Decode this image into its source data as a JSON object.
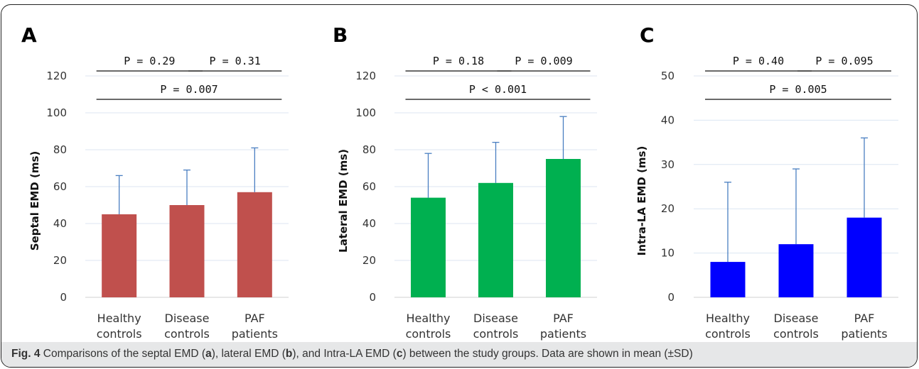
{
  "chart_data": [
    {
      "type": "bar",
      "panel_label": "A",
      "categories": [
        [
          "Healthy",
          "controls"
        ],
        [
          "Disease",
          "controls"
        ],
        [
          "PAF",
          "patients"
        ]
      ],
      "values": [
        45,
        50,
        57
      ],
      "errors": [
        21,
        19,
        24
      ],
      "ylabel": "Septal EMD (ms)",
      "ylim": [
        0,
        120
      ],
      "yticks": [
        0,
        20,
        40,
        60,
        80,
        100,
        120
      ],
      "color": "#c0504d",
      "error_color": "#4a7fc1",
      "grid": true,
      "comparisons": [
        {
          "from": 0,
          "to": 1,
          "label": "P = 0.29"
        },
        {
          "from": 1,
          "to": 2,
          "label": "P = 0.31"
        },
        {
          "from": 0,
          "to": 2,
          "label": "P = 0.007"
        }
      ]
    },
    {
      "type": "bar",
      "panel_label": "B",
      "categories": [
        [
          "Healthy",
          "controls"
        ],
        [
          "Disease",
          "controls"
        ],
        [
          "PAF",
          "patients"
        ]
      ],
      "values": [
        54,
        62,
        75
      ],
      "errors": [
        24,
        22,
        23
      ],
      "ylabel": "Lateral EMD (ms)",
      "ylim": [
        0,
        120
      ],
      "yticks": [
        0,
        20,
        40,
        60,
        80,
        100,
        120
      ],
      "color": "#00b050",
      "error_color": "#4a7fc1",
      "grid": true,
      "comparisons": [
        {
          "from": 0,
          "to": 1,
          "label": "P = 0.18"
        },
        {
          "from": 1,
          "to": 2,
          "label": "P = 0.009"
        },
        {
          "from": 0,
          "to": 2,
          "label": "P < 0.001"
        }
      ]
    },
    {
      "type": "bar",
      "panel_label": "C",
      "categories": [
        [
          "Healthy",
          "controls"
        ],
        [
          "Disease",
          "controls"
        ],
        [
          "PAF",
          "patients"
        ]
      ],
      "values": [
        8,
        12,
        18
      ],
      "errors": [
        18,
        17,
        18
      ],
      "ylabel": "Intra-LA EMD (ms)",
      "ylim": [
        0,
        50
      ],
      "yticks": [
        0,
        10,
        20,
        30,
        40,
        50
      ],
      "color": "#0000ff",
      "error_color": "#4a7fc1",
      "grid": true,
      "comparisons": [
        {
          "from": 0,
          "to": 1,
          "label": "P = 0.40"
        },
        {
          "from": 1,
          "to": 2,
          "label": "P = 0.095"
        },
        {
          "from": 0,
          "to": 2,
          "label": "P = 0.005"
        }
      ]
    }
  ],
  "caption": {
    "fig_label": "Fig. 4",
    "text_parts": [
      {
        "t": " Comparisons of the septal EMD (",
        "b": false
      },
      {
        "t": "a",
        "b": true
      },
      {
        "t": "), lateral EMD (",
        "b": false
      },
      {
        "t": "b",
        "b": true
      },
      {
        "t": "), and Intra-LA EMD (",
        "b": false
      },
      {
        "t": "c",
        "b": true
      },
      {
        "t": ") between the study groups. Data are shown in mean (±SD)",
        "b": false
      }
    ]
  }
}
